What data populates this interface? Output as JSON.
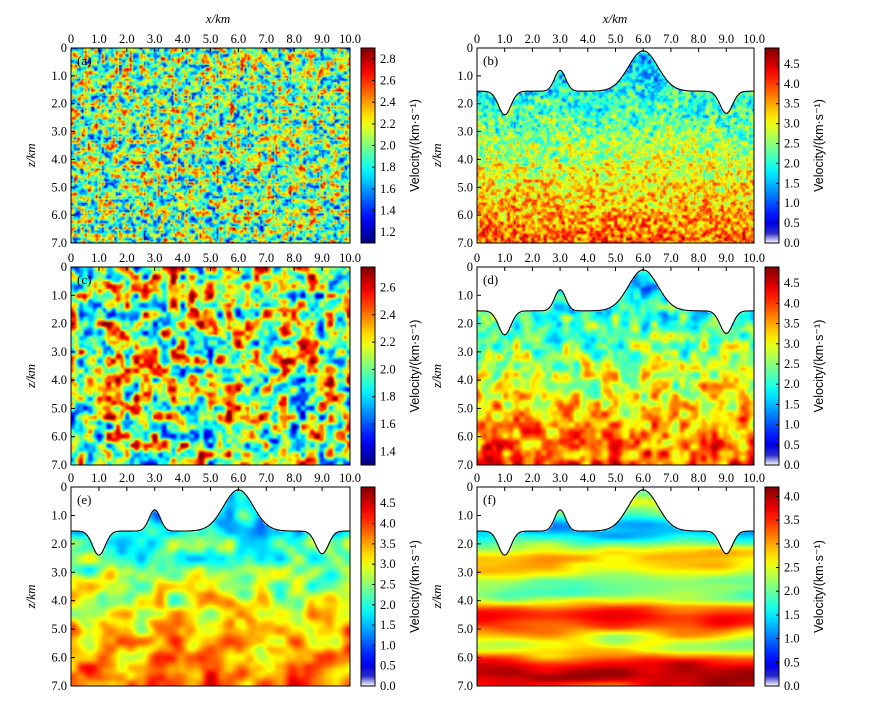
{
  "figure": {
    "x_axis_title": "x/km",
    "y_axis_title": "z/km",
    "x_ticks": [
      "0",
      "1.0",
      "2.0",
      "3.0",
      "4.0",
      "5.0",
      "6.0",
      "7.0",
      "8.0",
      "9.0",
      "10.0"
    ],
    "y_ticks": [
      "0",
      "1.0",
      "2.0",
      "3.0",
      "4.0",
      "5.0",
      "6.0",
      "7.0"
    ],
    "colorbar_label": "Velocity/(km·s⁻¹)"
  },
  "chart_data": [
    {
      "type": "heatmap",
      "panel_label": "(a)",
      "description": "random velocity perturbation, fine scale",
      "xlim": [
        0,
        10
      ],
      "ylim": [
        0,
        7
      ],
      "colorbar": {
        "ticks": [
          "1.2",
          "1.4",
          "1.6",
          "1.8",
          "2.0",
          "2.2",
          "2.4",
          "2.6",
          "2.8"
        ],
        "range": [
          1.1,
          2.9
        ]
      },
      "topography": false
    },
    {
      "type": "heatmap",
      "panel_label": "(b)",
      "description": "velocity model with topography, fine-scale heterogeneity",
      "xlim": [
        0,
        10
      ],
      "ylim": [
        0,
        7
      ],
      "colorbar": {
        "ticks": [
          "0.0",
          "0.5",
          "1.0",
          "1.5",
          "2.0",
          "2.5",
          "3.0",
          "3.5",
          "4.0",
          "4.5"
        ],
        "range": [
          0,
          4.9
        ]
      },
      "topography": true
    },
    {
      "type": "heatmap",
      "panel_label": "(c)",
      "description": "random velocity perturbation, coarse scale",
      "xlim": [
        0,
        10
      ],
      "ylim": [
        0,
        7
      ],
      "colorbar": {
        "ticks": [
          "1.4",
          "1.6",
          "1.8",
          "2.0",
          "2.2",
          "2.4",
          "2.6"
        ],
        "range": [
          1.3,
          2.75
        ]
      },
      "topography": false
    },
    {
      "type": "heatmap",
      "panel_label": "(d)",
      "description": "velocity model with topography, coarse heterogeneity",
      "xlim": [
        0,
        10
      ],
      "ylim": [
        0,
        7
      ],
      "colorbar": {
        "ticks": [
          "0.0",
          "0.5",
          "1.0",
          "1.5",
          "2.0",
          "2.5",
          "3.0",
          "3.5",
          "4.0",
          "4.5"
        ],
        "range": [
          0,
          4.9
        ]
      },
      "topography": true
    },
    {
      "type": "heatmap",
      "panel_label": "(e)",
      "description": "velocity model with topography, smoothed heterogeneity",
      "xlim": [
        0,
        10
      ],
      "ylim": [
        0,
        7
      ],
      "colorbar": {
        "ticks": [
          "0.0",
          "0.5",
          "1.0",
          "1.5",
          "2.0",
          "2.5",
          "3.0",
          "3.5",
          "4.0",
          "4.5"
        ],
        "range": [
          0,
          4.9
        ]
      },
      "topography": true
    },
    {
      "type": "heatmap",
      "panel_label": "(f)",
      "description": "velocity model with topography, laterally elongated layers",
      "xlim": [
        0,
        10
      ],
      "ylim": [
        0,
        7
      ],
      "colorbar": {
        "ticks": [
          "0.0",
          "0.5",
          "1.0",
          "1.5",
          "2.0",
          "2.5",
          "3.0",
          "3.5",
          "4.0"
        ],
        "range": [
          0,
          4.2
        ]
      },
      "topography": true
    }
  ]
}
